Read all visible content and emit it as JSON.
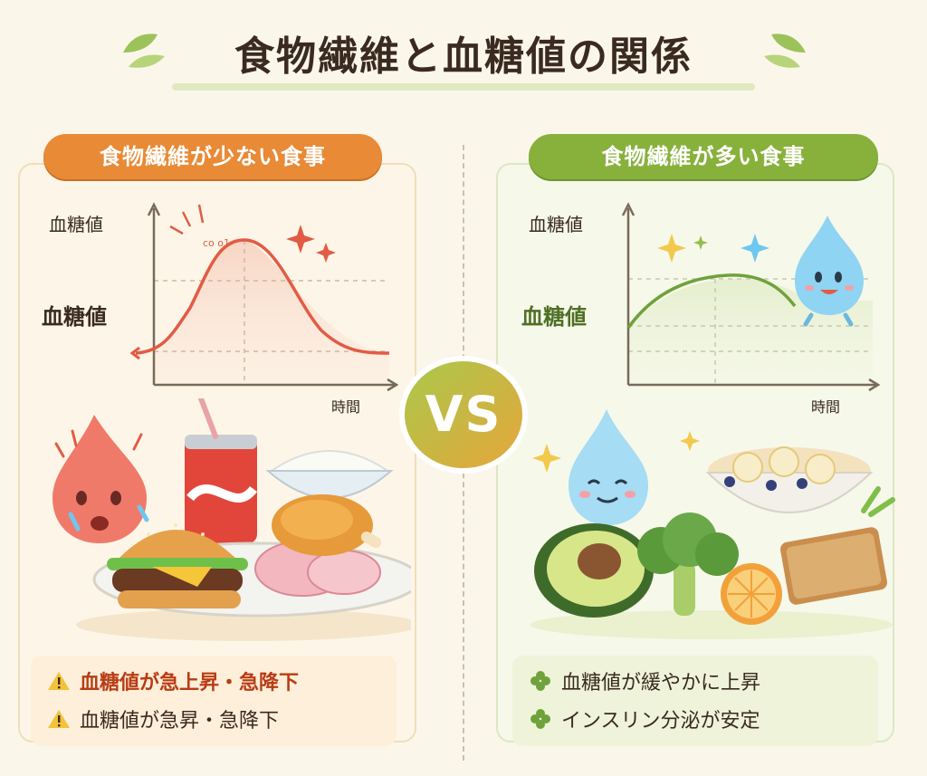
{
  "title": "食物繊維と血糖値の関係",
  "left": {
    "tag": "食物繊維が少ない食事",
    "chart": {
      "y_label_top": "血糖値",
      "y_label_mid": "血糖値",
      "x_label": "時間",
      "annotation": "co o1",
      "curve_color": "#e25b45"
    },
    "notes": [
      {
        "icon": "warning-icon",
        "text": "血糖値が急上昇・急降下"
      },
      {
        "icon": "warning-icon",
        "text": "血糖値が急昇・急降下"
      }
    ]
  },
  "right": {
    "tag": "食物繊維が多い食事",
    "chart": {
      "y_label_top": "血糖値",
      "y_label_mid": "血糖値",
      "x_label": "時間",
      "curve_color": "#6fa23a"
    },
    "notes": [
      {
        "icon": "clover-icon",
        "text": "血糖値が緩やかに上昇"
      },
      {
        "icon": "clover-icon",
        "text": "インスリン分泌が安定"
      }
    ]
  },
  "vs": "VS",
  "colors": {
    "orange": "#e88a36",
    "green": "#88b13c",
    "red_curve": "#e25b45",
    "green_curve": "#6fa23a"
  }
}
